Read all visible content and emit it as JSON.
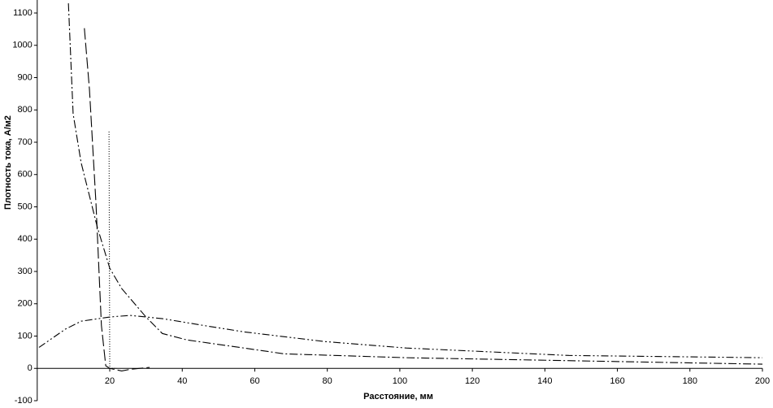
{
  "chart_data": {
    "type": "line",
    "x_label": "Расстояние, мм",
    "y_label": "Плотность тока, А/м2",
    "xlim": [
      0,
      200
    ],
    "xticks": [
      20,
      40,
      60,
      80,
      100,
      120,
      140,
      160,
      180,
      200
    ],
    "ylim": [
      -100,
      1100
    ],
    "yticks": [
      -100,
      0,
      100,
      200,
      300,
      400,
      500,
      600,
      700,
      800,
      900,
      1000,
      1100
    ],
    "grid": false,
    "series": [
      {
        "color": "#000000",
        "dash": "dash-dot",
        "x": [
          8.6,
          9.9,
          12.1,
          16.6,
          20,
          23.3,
          30,
          34.5,
          41.3,
          57,
          68.1,
          101.8,
          200
        ],
        "values": [
          1130,
          788,
          637,
          436,
          310,
          247,
          159,
          108,
          88,
          63,
          45,
          33,
          13
        ]
      },
      {
        "color": "#000000",
        "dash": "long-dash",
        "x": [
          13,
          14.4,
          16.2,
          17.7,
          18.9,
          20,
          23.3,
          25.6,
          31
        ],
        "values": [
          1053,
          864,
          511,
          133,
          8,
          0,
          -8,
          -3,
          3
        ]
      },
      {
        "color": "#000000",
        "dash": "dot",
        "x": [
          19.8,
          20,
          22
        ],
        "values": [
          733,
          0,
          0
        ]
      },
      {
        "color": "#000000",
        "dash": "dash-dot-dot",
        "x": [
          0.5,
          7.7,
          12.1,
          20,
          25.6,
          34.5,
          45.8,
          57,
          79.3,
          101.8,
          146.6,
          200
        ],
        "values": [
          65,
          121,
          146,
          159,
          164,
          154,
          133,
          113,
          83,
          63,
          40,
          33
        ]
      }
    ]
  }
}
